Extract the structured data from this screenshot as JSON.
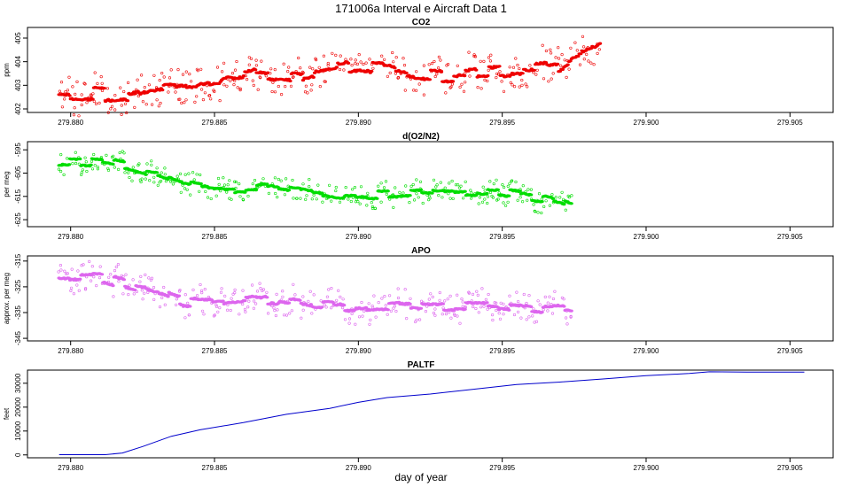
{
  "title": "171006a   Interval e Aircraft Data 1",
  "xlabel": "day of year",
  "chart_data": [
    {
      "type": "scatter",
      "title": "CO2",
      "ylabel": "ppm",
      "color": "#ee0000",
      "xlim": [
        279.8785,
        279.9065
      ],
      "ylim": [
        401.85,
        405.45
      ],
      "x_ticks": [
        "279.880",
        "279.885",
        "279.890",
        "279.895",
        "279.900",
        "279.905"
      ],
      "y_ticks": [
        "402",
        "403",
        "404",
        "405"
      ],
      "x_start": 279.8796,
      "x_end": 279.8984,
      "trend": [
        [
          279.8796,
          402.6
        ],
        [
          279.882,
          402.6
        ],
        [
          279.883,
          402.9
        ],
        [
          279.885,
          403.2
        ],
        [
          279.8865,
          403.6
        ],
        [
          279.888,
          403.4
        ],
        [
          279.889,
          403.7
        ],
        [
          279.89,
          403.9
        ],
        [
          279.891,
          403.7
        ],
        [
          279.892,
          403.4
        ],
        [
          279.893,
          403.4
        ],
        [
          279.8945,
          403.6
        ],
        [
          279.896,
          403.7
        ],
        [
          279.897,
          403.8
        ],
        [
          279.8975,
          404.4
        ],
        [
          279.8984,
          404.9
        ]
      ],
      "noise": 0.35,
      "seed": 11
    },
    {
      "type": "scatter",
      "title": "d(O2/N2)",
      "ylabel": "per meg",
      "color": "#00dd00",
      "xlim": [
        279.8785,
        279.9065
      ],
      "ylim": [
        -628,
        -591.5
      ],
      "x_ticks": [
        "279.880",
        "279.885",
        "279.890",
        "279.895",
        "279.900",
        "279.905"
      ],
      "y_ticks": [
        "-595",
        "-605",
        "-615",
        "-625"
      ],
      "x_start": 279.8796,
      "x_end": 279.8974,
      "trend": [
        [
          279.8796,
          -600
        ],
        [
          279.881,
          -600
        ],
        [
          279.882,
          -602
        ],
        [
          279.883,
          -605
        ],
        [
          279.884,
          -610
        ],
        [
          279.885,
          -612
        ],
        [
          279.887,
          -611
        ],
        [
          279.889,
          -615
        ],
        [
          279.891,
          -614
        ],
        [
          279.893,
          -613
        ],
        [
          279.895,
          -613
        ],
        [
          279.8965,
          -616
        ],
        [
          279.8974,
          -619
        ]
      ],
      "noise": 2.2,
      "seed": 23
    },
    {
      "type": "scatter",
      "title": "APO",
      "ylabel": "approx. per meg",
      "color": "#dd66ee",
      "xlim": [
        279.8785,
        279.9065
      ],
      "ylim": [
        -346,
        -313
      ],
      "x_ticks": [
        "279.880",
        "279.885",
        "279.890",
        "279.895",
        "279.900",
        "279.905"
      ],
      "y_ticks": [
        "-315",
        "-325",
        "-335",
        "-345"
      ],
      "x_start": 279.8796,
      "x_end": 279.8974,
      "trend": [
        [
          279.8796,
          -322
        ],
        [
          279.881,
          -321
        ],
        [
          279.882,
          -324
        ],
        [
          279.883,
          -327
        ],
        [
          279.884,
          -331
        ],
        [
          279.885,
          -332
        ],
        [
          279.887,
          -330
        ],
        [
          279.889,
          -333
        ],
        [
          279.891,
          -332
        ],
        [
          279.893,
          -332
        ],
        [
          279.895,
          -333
        ],
        [
          279.8965,
          -334
        ],
        [
          279.8974,
          -334
        ]
      ],
      "noise": 2.6,
      "seed": 37
    },
    {
      "type": "line",
      "title": "PALTF",
      "ylabel": "feet",
      "color": "#0000cc",
      "xlim": [
        279.8785,
        279.9065
      ],
      "ylim": [
        -1200,
        35500
      ],
      "x_ticks": [
        "279.880",
        "279.885",
        "279.890",
        "279.895",
        "279.900",
        "279.905"
      ],
      "y_ticks": [
        "0",
        "10000",
        "20000",
        "30000"
      ],
      "points": [
        [
          279.8796,
          100
        ],
        [
          279.8812,
          100
        ],
        [
          279.8818,
          800
        ],
        [
          279.8825,
          3500
        ],
        [
          279.8835,
          7800
        ],
        [
          279.8845,
          10500
        ],
        [
          279.886,
          13500
        ],
        [
          279.8875,
          17000
        ],
        [
          279.889,
          19500
        ],
        [
          279.89,
          22000
        ],
        [
          279.891,
          24000
        ],
        [
          279.8925,
          25500
        ],
        [
          279.894,
          27500
        ],
        [
          279.8955,
          29500
        ],
        [
          279.897,
          30500
        ],
        [
          279.8985,
          31800
        ],
        [
          279.9,
          33200
        ],
        [
          279.9015,
          34100
        ],
        [
          279.9022,
          34800
        ],
        [
          279.9035,
          34700
        ],
        [
          279.9055,
          34700
        ]
      ]
    }
  ]
}
